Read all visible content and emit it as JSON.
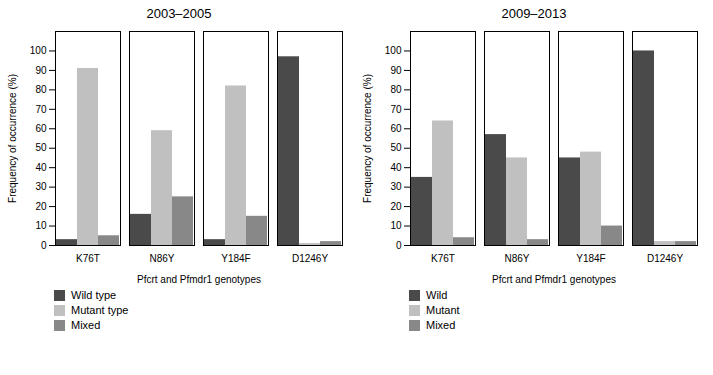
{
  "chart_data": [
    {
      "type": "bar",
      "title": "2003–2005",
      "categories": [
        "K76T",
        "N86Y",
        "Y184F",
        "D1246Y"
      ],
      "series": [
        {
          "name": "Wild type",
          "color": "#4a4a4a",
          "values": [
            3,
            16,
            3,
            97
          ]
        },
        {
          "name": "Mutant type",
          "color": "#c0c0c0",
          "values": [
            91,
            59,
            82,
            1
          ]
        },
        {
          "name": "Mixed",
          "color": "#888888",
          "values": [
            5,
            25,
            15,
            2
          ]
        }
      ],
      "xlabel": "Pfcrt and Pfmdr1 genotypes",
      "ylabel": "Frequency of occurrence (%)",
      "ylim": [
        0,
        110
      ],
      "yticks": [
        0,
        10,
        20,
        30,
        40,
        50,
        60,
        70,
        80,
        90,
        100
      ],
      "grid": false,
      "legend": "bottom"
    },
    {
      "type": "bar",
      "title": "2009–2013",
      "categories": [
        "K76T",
        "N86Y",
        "Y184F",
        "D1246Y"
      ],
      "series": [
        {
          "name": "Wild",
          "color": "#4a4a4a",
          "values": [
            35,
            57,
            45,
            100
          ]
        },
        {
          "name": "Mutant",
          "color": "#c0c0c0",
          "values": [
            64,
            45,
            48,
            2
          ]
        },
        {
          "name": "Mixed",
          "color": "#888888",
          "values": [
            4,
            3,
            10,
            2
          ]
        }
      ],
      "xlabel": "Pfcrt and Pfmdr1 genotypes",
      "ylabel": "Frequency of occurrence (%)",
      "ylim": [
        0,
        110
      ],
      "yticks": [
        0,
        10,
        20,
        30,
        40,
        50,
        60,
        70,
        80,
        90,
        100
      ],
      "grid": false,
      "legend": "bottom"
    }
  ]
}
